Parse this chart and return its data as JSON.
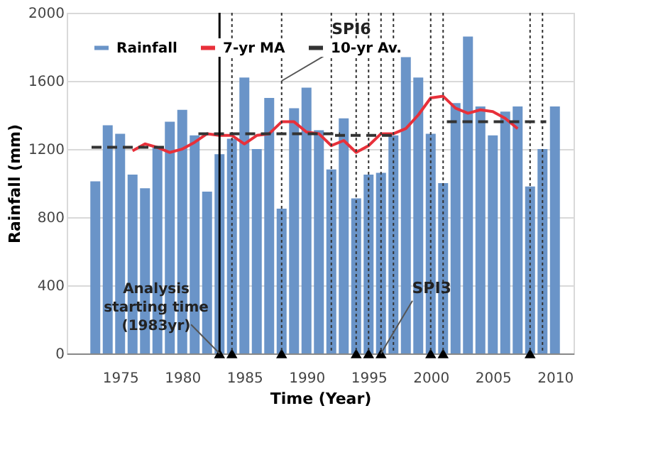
{
  "chart_data": {
    "type": "bar",
    "xlabel": "Time (Year)",
    "ylabel": "Rainfall (mm)",
    "x": [
      1973,
      1974,
      1975,
      1976,
      1977,
      1978,
      1979,
      1980,
      1981,
      1982,
      1983,
      1984,
      1985,
      1986,
      1987,
      1988,
      1989,
      1990,
      1991,
      1992,
      1993,
      1994,
      1995,
      1996,
      1997,
      1998,
      1999,
      2000,
      2001,
      2002,
      2003,
      2004,
      2005,
      2006,
      2007,
      2008,
      2009,
      2010
    ],
    "series": [
      {
        "name": "Rainfall",
        "color": "#6a94c8",
        "values": [
          1010,
          1340,
          1290,
          1050,
          970,
          1210,
          1360,
          1430,
          1280,
          950,
          1170,
          1260,
          1620,
          1200,
          1500,
          850,
          1440,
          1560,
          1310,
          1080,
          1380,
          910,
          1050,
          1060,
          1280,
          1740,
          1620,
          1290,
          1000,
          1470,
          1860,
          1450,
          1280,
          1420,
          1450,
          980,
          1200,
          1450
        ]
      },
      {
        "name": "7-yr MA",
        "type": "line",
        "color": "#e8303a",
        "x": [
          1976,
          1977,
          1978,
          1979,
          1980,
          1981,
          1982,
          1983,
          1984,
          1985,
          1986,
          1987,
          1988,
          1989,
          1990,
          1991,
          1992,
          1993,
          1994,
          1995,
          1996,
          1997,
          1998,
          1999,
          2000,
          2001,
          2002,
          2003,
          2004,
          2005,
          2006,
          2007
        ],
        "values": [
          1190,
          1230,
          1210,
          1180,
          1200,
          1240,
          1290,
          1280,
          1280,
          1230,
          1280,
          1290,
          1360,
          1360,
          1300,
          1290,
          1220,
          1250,
          1180,
          1220,
          1290,
          1290,
          1320,
          1400,
          1500,
          1510,
          1440,
          1410,
          1430,
          1420,
          1380,
          1320
        ]
      },
      {
        "name": "10-yr Av.",
        "type": "line",
        "line_style": "dashed",
        "color": "#333333",
        "x": [
          1972.7,
          1978.7
        ],
        "values": [
          1210,
          1210
        ]
      },
      {
        "type": "line",
        "line_style": "dashed",
        "color": "#333333",
        "x": [
          1981.3,
          1992.7
        ],
        "values": [
          1290,
          1290
        ]
      },
      {
        "type": "line",
        "line_style": "dashed",
        "color": "#333333",
        "x": [
          1992.3,
          1997.3
        ],
        "values": [
          1280,
          1280
        ]
      },
      {
        "type": "line",
        "line_style": "dashed",
        "color": "#333333",
        "x": [
          2001.3,
          2009.3
        ],
        "values": [
          1360,
          1360
        ]
      },
      {
        "type": "scatter",
        "marker": "triangle",
        "color": "#000000",
        "x": [
          1983,
          1984,
          1988,
          1994,
          1995,
          1996,
          2000,
          2001,
          2008
        ],
        "values": [
          0,
          0,
          0,
          0,
          0,
          0,
          0,
          0,
          0
        ]
      }
    ],
    "ref_lines": [
      {
        "axis": "x",
        "value": 1983,
        "line_style": "solid",
        "color": "#000000"
      },
      {
        "axis": "x",
        "value": 1984,
        "line_style": "dotted",
        "color": "#333333"
      },
      {
        "axis": "x",
        "value": 1988,
        "line_style": "dotted",
        "color": "#333333"
      },
      {
        "axis": "x",
        "value": 1992,
        "line_style": "dotted",
        "color": "#333333"
      },
      {
        "axis": "x",
        "value": 1994,
        "line_style": "dotted",
        "color": "#333333"
      },
      {
        "axis": "x",
        "value": 1995,
        "line_style": "dotted",
        "color": "#333333"
      },
      {
        "axis": "x",
        "value": 1996,
        "line_style": "dotted",
        "color": "#333333"
      },
      {
        "axis": "x",
        "value": 1997,
        "line_style": "dotted",
        "color": "#333333"
      },
      {
        "axis": "x",
        "value": 2000,
        "line_style": "dotted",
        "color": "#333333"
      },
      {
        "axis": "x",
        "value": 2001,
        "line_style": "dotted",
        "color": "#333333"
      },
      {
        "axis": "x",
        "value": 2008,
        "line_style": "dotted",
        "color": "#333333"
      },
      {
        "axis": "x",
        "value": 2009,
        "line_style": "dotted",
        "color": "#333333"
      }
    ],
    "annotations": [
      {
        "text": "SPI6",
        "x": 1988,
        "y": 1600
      },
      {
        "text": "SPI3",
        "x": 1996,
        "y": 0
      },
      {
        "text": "Analysis starting time (1983yr)",
        "x": 1983,
        "y": 0
      }
    ],
    "xlim": [
      1970.7,
      2011.5
    ],
    "xticks": [
      1975,
      1980,
      1985,
      1990,
      1995,
      2000,
      2005,
      2010
    ],
    "ylim": [
      0,
      2000
    ],
    "yticks": [
      0,
      400,
      800,
      1200,
      1600,
      2000
    ],
    "grid": "y",
    "legend": "top left"
  }
}
